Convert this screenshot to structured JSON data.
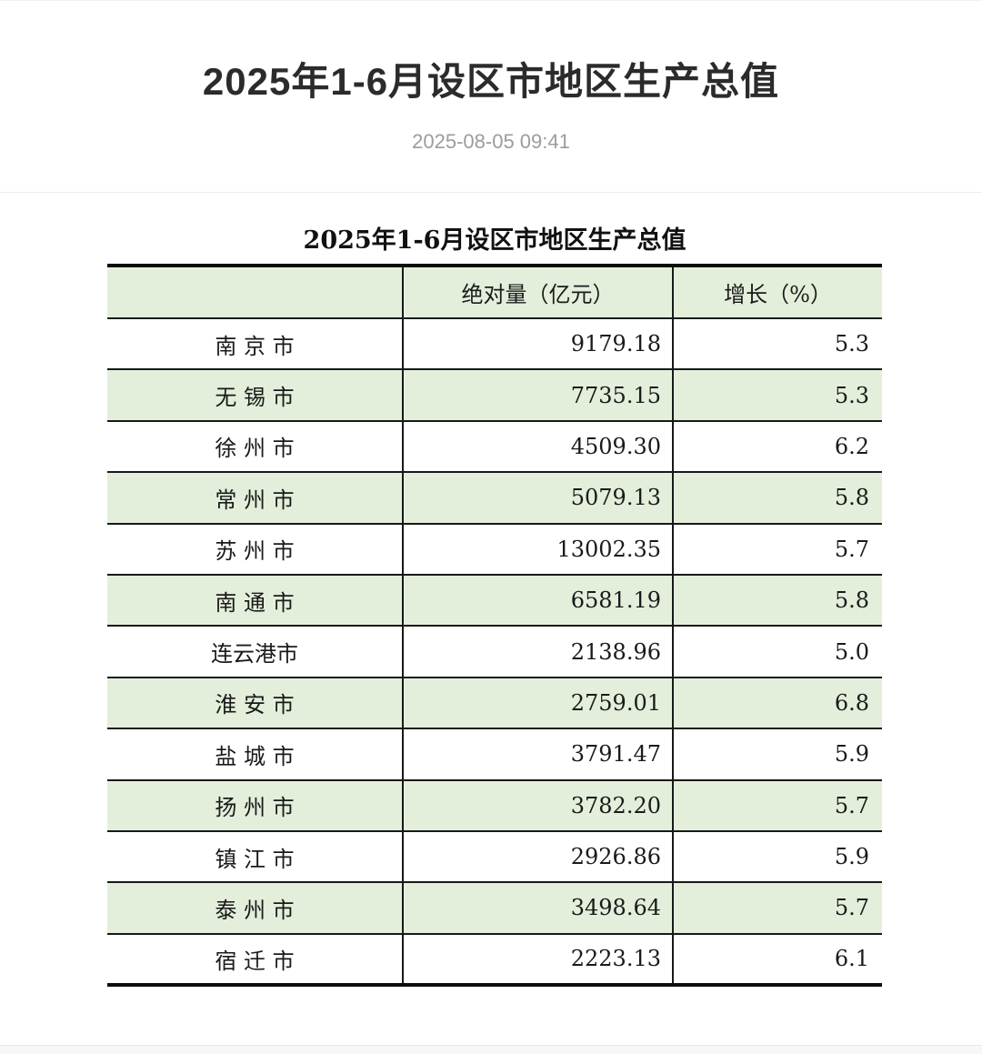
{
  "article": {
    "title": "2025年1-6月设区市地区生产总值",
    "date": "2025-08-05 09:41"
  },
  "table": {
    "title": "2025年1-6月设区市地区生产总值",
    "columns": [
      "",
      "绝对量（亿元）",
      "增长（%）"
    ],
    "rows": [
      {
        "city": "南 京 市",
        "value": "9179.18",
        "growth": "5.3"
      },
      {
        "city": "无 锡 市",
        "value": "7735.15",
        "growth": "5.3"
      },
      {
        "city": "徐 州 市",
        "value": "4509.30",
        "growth": "6.2"
      },
      {
        "city": "常 州 市",
        "value": "5079.13",
        "growth": "5.8"
      },
      {
        "city": "苏 州 市",
        "value": "13002.35",
        "growth": "5.7"
      },
      {
        "city": "南 通 市",
        "value": "6581.19",
        "growth": "5.8"
      },
      {
        "city": "连云港市",
        "value": "2138.96",
        "growth": "5.0"
      },
      {
        "city": "淮 安 市",
        "value": "2759.01",
        "growth": "6.8"
      },
      {
        "city": "盐 城 市",
        "value": "3791.47",
        "growth": "5.9"
      },
      {
        "city": "扬 州 市",
        "value": "3782.20",
        "growth": "5.7"
      },
      {
        "city": "镇 江 市",
        "value": "2926.86",
        "growth": "5.9"
      },
      {
        "city": "泰 州 市",
        "value": "3498.64",
        "growth": "5.7"
      },
      {
        "city": "宿 迁 市",
        "value": "2223.13",
        "growth": "6.1"
      }
    ],
    "colors": {
      "stripe_green": "#e4efdb",
      "border_black": "#0d0d0d",
      "title_text": "#2b2b2b",
      "date_text": "#9c9c9c"
    }
  },
  "chart_data": {
    "type": "table",
    "title": "2025年1-6月设区市地区生产总值",
    "categories": [
      "南京市",
      "无锡市",
      "徐州市",
      "常州市",
      "苏州市",
      "南通市",
      "连云港市",
      "淮安市",
      "盐城市",
      "扬州市",
      "镇江市",
      "泰州市",
      "宿迁市"
    ],
    "series": [
      {
        "name": "绝对量（亿元）",
        "values": [
          9179.18,
          7735.15,
          4509.3,
          5079.13,
          13002.35,
          6581.19,
          2138.96,
          2759.01,
          3791.47,
          3782.2,
          2926.86,
          3498.64,
          2223.13
        ]
      },
      {
        "name": "增长（%）",
        "values": [
          5.3,
          5.3,
          6.2,
          5.8,
          5.7,
          5.8,
          5.0,
          6.8,
          5.9,
          5.7,
          5.9,
          5.7,
          6.1
        ]
      }
    ]
  }
}
